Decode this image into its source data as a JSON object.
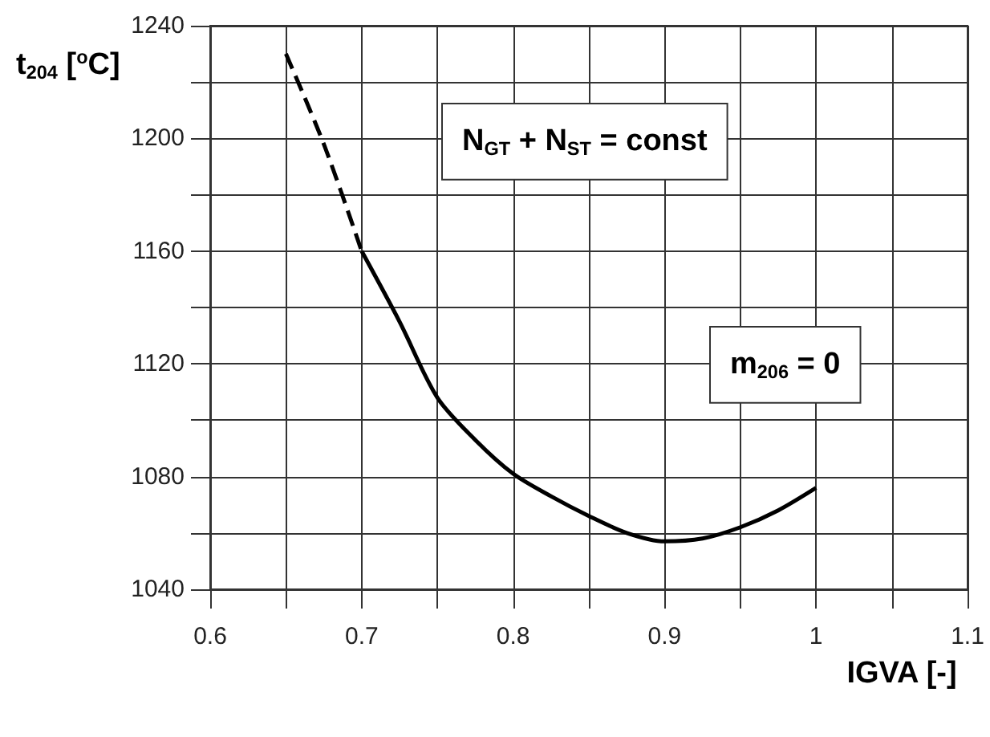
{
  "chart_data": {
    "type": "line",
    "xlabel": "IGVA [-]",
    "ylabel": "t$_{204}$ [$^{o}$C]",
    "annotations": [
      "N$_{GT}$ + N$_{ST}$ = const",
      "m$_{206}$ = 0"
    ],
    "series": [
      {
        "color": "#000000",
        "line_style": "dashed",
        "x": [
          0.65,
          0.675,
          0.7
        ],
        "values": [
          1230,
          1198,
          1160
        ]
      },
      {
        "color": "#000000",
        "line_style": "solid",
        "x": [
          0.7,
          0.725,
          0.75,
          0.775,
          0.8,
          0.825,
          0.85,
          0.875,
          0.9,
          0.925,
          0.95,
          0.975,
          1.0
        ],
        "values": [
          1160,
          1135,
          1108,
          1093,
          1081,
          1073,
          1066,
          1060,
          1057,
          1058,
          1062,
          1068,
          1076
        ]
      }
    ],
    "xlim": [
      0.6,
      1.1
    ],
    "xticks": [
      0.6,
      {
        "value": 0.65,
        "label": null
      },
      0.7,
      {
        "value": 0.75,
        "label": null
      },
      0.8,
      {
        "value": 0.85,
        "label": null
      },
      0.9,
      {
        "value": 0.95,
        "label": null
      },
      1,
      {
        "value": 1.05,
        "label": null
      },
      1.1
    ],
    "ylim": [
      1040,
      1240
    ],
    "yticks": [
      1040,
      {
        "value": 1060,
        "label": null
      },
      1080,
      {
        "value": 1100,
        "label": null
      },
      1120,
      {
        "value": 1140,
        "label": null
      },
      1160,
      {
        "value": 1180,
        "label": null
      },
      1200,
      {
        "value": 1220,
        "label": null
      },
      1240
    ],
    "grid": true,
    "marker": "none"
  }
}
